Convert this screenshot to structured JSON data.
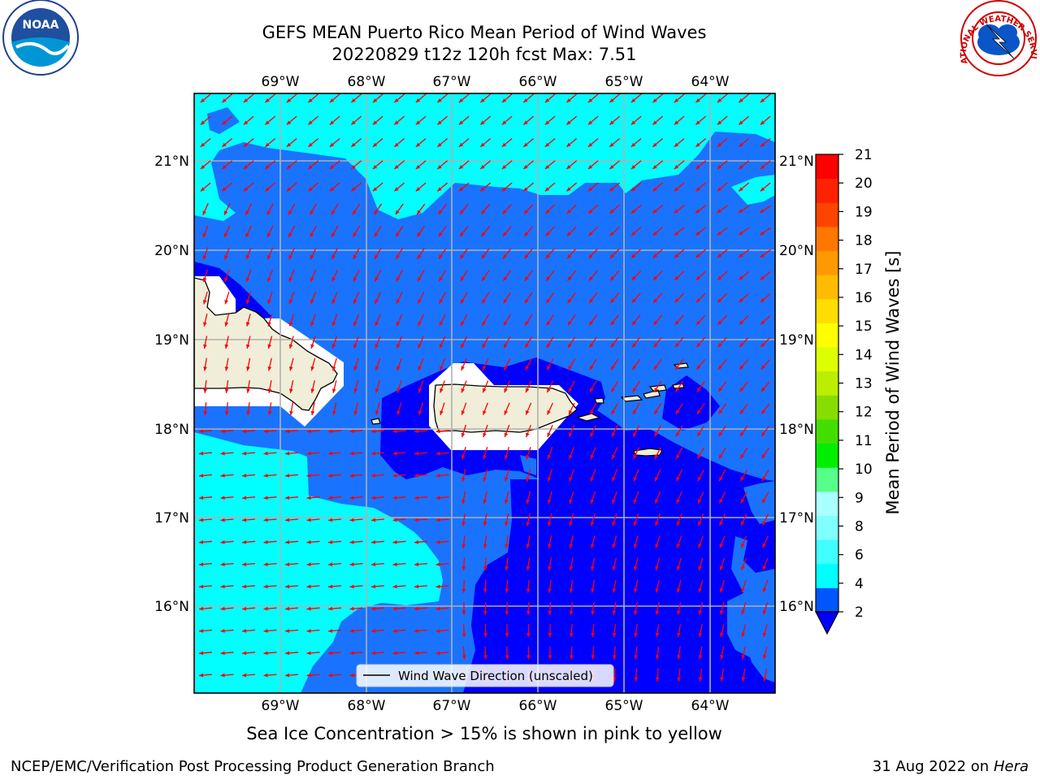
{
  "title": {
    "line1": "GEFS MEAN Puerto Rico Mean Period of Wind Waves",
    "line2": "20220829 t12z 120h fcst   Max: 7.51"
  },
  "axes": {
    "lon_labels": [
      "69°W",
      "68°W",
      "67°W",
      "66°W",
      "65°W",
      "64°W"
    ],
    "lat_labels": [
      "21°N",
      "20°N",
      "19°N",
      "18°N",
      "17°N",
      "16°N"
    ]
  },
  "legend": {
    "label": "Wind Wave Direction (unscaled)"
  },
  "colorbar": {
    "label": "Mean Period of Wind Waves [s]",
    "ticks": [
      "2",
      "4",
      "6",
      "8",
      "9",
      "10",
      "11",
      "12",
      "13",
      "14",
      "15",
      "16",
      "17",
      "18",
      "19",
      "20",
      "21"
    ],
    "colors": [
      "#0055ff",
      "#00ffff",
      "#40ffff",
      "#80ffff",
      "#aaffff",
      "#55ff88",
      "#00ee00",
      "#44dd00",
      "#88dd00",
      "#bbee00",
      "#ddff00",
      "#ffff00",
      "#ffdd00",
      "#ffbb00",
      "#ff9900",
      "#ff7700",
      "#ff4400",
      "#ff2200",
      "#ff0000"
    ],
    "under_color": "#0000ff"
  },
  "colors": {
    "deep": "#0000ff",
    "mid": "#1a73ff",
    "light": "#00ffff",
    "land": "#f0eed8",
    "arrow": "#ff0000",
    "grid": "#b0b0b0"
  },
  "footnote": "Sea Ice Concentration > 15% is shown in pink to yellow",
  "credit": "NCEP/EMC/Verification Post Processing Product Generation Branch",
  "datestamp": {
    "date": "31 Aug 2022 on",
    "host": "Hera"
  },
  "logos": {
    "left": "NOAA",
    "right": "NATIONAL WEATHER SERVICE"
  }
}
